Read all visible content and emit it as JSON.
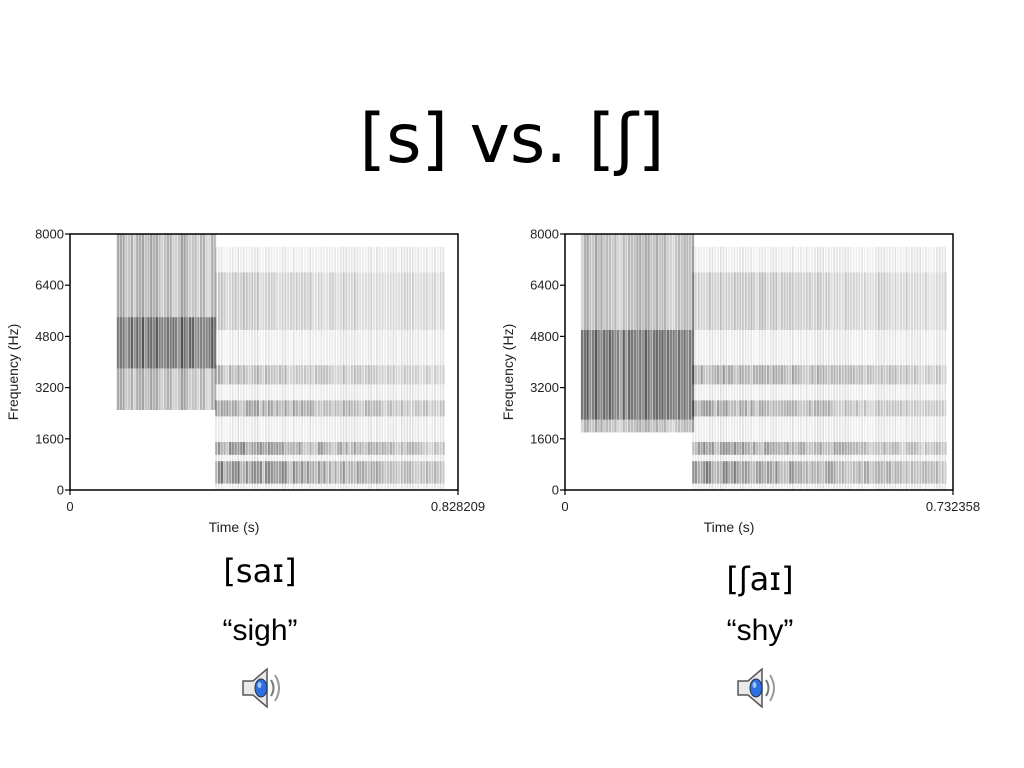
{
  "slide": {
    "title": "[s] vs. [ʃ]"
  },
  "items": [
    {
      "transcription": "[saɪ]",
      "gloss": "“sigh”",
      "audio_icon": "speaker-icon"
    },
    {
      "transcription": "[ʃaɪ]",
      "gloss": "“shy”",
      "audio_icon": "speaker-icon"
    }
  ],
  "colors": {
    "spectrogram": "#000000",
    "speaker_blue": "#2d6fe0"
  },
  "chart_data": [
    {
      "type": "heatmap",
      "title": "",
      "xlabel": "Time (s)",
      "ylabel": "Frequency (Hz)",
      "xlim": [
        0,
        0.828209
      ],
      "ylim": [
        0,
        8000
      ],
      "x_tick_labels": [
        "0",
        "0.828209"
      ],
      "y_tick_labels": [
        "0",
        "1600",
        "3200",
        "4800",
        "6400",
        "8000"
      ],
      "y_ticks": [
        0,
        1600,
        3200,
        4800,
        6400,
        8000
      ],
      "segments": [
        {
          "phone": "s",
          "t_start": 0.1,
          "t_end": 0.31,
          "energy": [
            [
              2500,
              8000,
              0.8
            ],
            [
              3800,
              5400,
              1.0
            ]
          ]
        },
        {
          "phone": "aɪ",
          "t_start": 0.31,
          "t_end": 0.8,
          "formants": [
            [
              200,
              900,
              0.95
            ],
            [
              1100,
              1500,
              0.9
            ],
            [
              2300,
              2800,
              0.75
            ],
            [
              3300,
              3900,
              0.55
            ],
            [
              5000,
              6800,
              0.35
            ]
          ]
        }
      ]
    },
    {
      "type": "heatmap",
      "title": "",
      "xlabel": "Time (s)",
      "ylabel": "Frequency (Hz)",
      "xlim": [
        0,
        0.732358
      ],
      "ylim": [
        0,
        8000
      ],
      "x_tick_labels": [
        "0",
        "0.732358"
      ],
      "y_tick_labels": [
        "0",
        "1600",
        "3200",
        "4800",
        "6400",
        "8000"
      ],
      "y_ticks": [
        0,
        1600,
        3200,
        4800,
        6400,
        8000
      ],
      "segments": [
        {
          "phone": "ʃ",
          "t_start": 0.03,
          "t_end": 0.24,
          "energy": [
            [
              1800,
              8000,
              0.75
            ],
            [
              2200,
              5000,
              1.0
            ]
          ]
        },
        {
          "phone": "aɪ",
          "t_start": 0.24,
          "t_end": 0.72,
          "formants": [
            [
              200,
              900,
              0.95
            ],
            [
              1100,
              1500,
              0.85
            ],
            [
              2300,
              2800,
              0.7
            ],
            [
              3300,
              3900,
              0.7
            ],
            [
              5000,
              6800,
              0.4
            ]
          ]
        }
      ]
    }
  ]
}
